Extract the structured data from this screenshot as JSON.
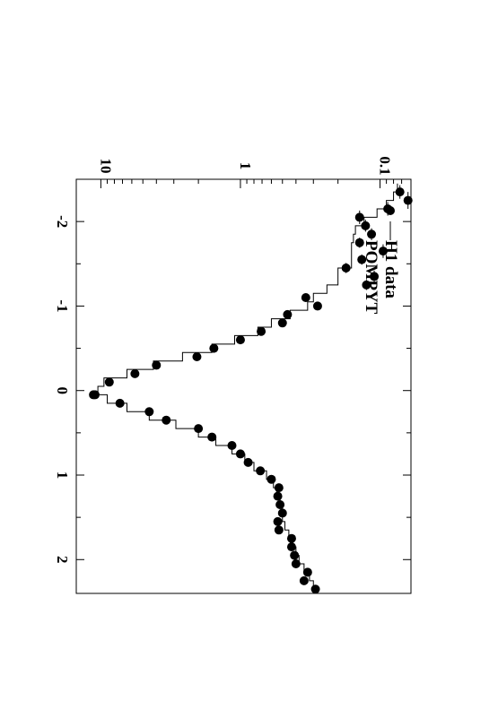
{
  "chart_data": {
    "type": "scatter",
    "rotated_page": true,
    "x_axis": {
      "range": [
        -2.5,
        2.4
      ],
      "ticks": [
        -2,
        -1,
        0,
        1,
        2
      ],
      "tick_labels": [
        "-2",
        "-1",
        "0",
        "1",
        "2"
      ]
    },
    "y_axis": {
      "scale": "log",
      "range": [
        0.06,
        15
      ],
      "ticks": [
        0.1,
        1,
        10
      ],
      "tick_labels": [
        "0.1",
        "1",
        "10"
      ]
    },
    "legend": {
      "placement": "top-left",
      "entries": [
        "H1 data",
        "POMPYT"
      ]
    },
    "series": [
      {
        "name": "H1 data",
        "style": "points-with-xerror",
        "points": [
          [
            -2.35,
            0.072,
            0.08
          ],
          [
            -2.25,
            0.063,
            0.1
          ],
          [
            -2.15,
            0.088,
            0.08
          ],
          [
            -2.05,
            0.14,
            0.08
          ],
          [
            -1.95,
            0.127,
            0.07
          ],
          [
            -1.85,
            0.115,
            0.07
          ],
          [
            -1.75,
            0.14,
            0.06
          ],
          [
            -1.65,
            0.095,
            0.08
          ],
          [
            -1.55,
            0.135,
            0.06
          ],
          [
            -1.45,
            0.175,
            0.06
          ],
          [
            -1.35,
            0.11,
            0.07
          ],
          [
            -1.25,
            0.125,
            0.06
          ],
          [
            -1.1,
            0.34,
            0.05
          ],
          [
            -1.0,
            0.28,
            0.05
          ],
          [
            -0.9,
            0.46,
            0.04
          ],
          [
            -0.8,
            0.5,
            0.04
          ],
          [
            -0.7,
            0.71,
            0.04
          ],
          [
            -0.6,
            1.0,
            0.04
          ],
          [
            -0.5,
            1.55,
            0.04
          ],
          [
            -0.4,
            2.05,
            0.04
          ],
          [
            -0.3,
            4.0,
            0.04
          ],
          [
            -0.2,
            5.7,
            0.04
          ],
          [
            -0.1,
            8.7,
            0.04
          ],
          [
            0.05,
            11.3,
            0.04
          ],
          [
            0.05,
            11.0,
            0.04
          ],
          [
            0.15,
            7.3,
            0.04
          ],
          [
            0.25,
            4.5,
            0.04
          ],
          [
            0.35,
            3.4,
            0.04
          ],
          [
            0.45,
            2.0,
            0.04
          ],
          [
            0.55,
            1.6,
            0.04
          ],
          [
            0.65,
            1.15,
            0.04
          ],
          [
            0.75,
            1.0,
            0.04
          ],
          [
            0.85,
            0.88,
            0.04
          ],
          [
            0.95,
            0.72,
            0.04
          ],
          [
            1.05,
            0.6,
            0.04
          ],
          [
            1.15,
            0.53,
            0.05
          ],
          [
            1.25,
            0.54,
            0.05
          ],
          [
            1.35,
            0.52,
            0.05
          ],
          [
            1.45,
            0.5,
            0.05
          ],
          [
            1.55,
            0.54,
            0.05
          ],
          [
            1.65,
            0.53,
            0.05
          ],
          [
            1.75,
            0.43,
            0.05
          ],
          [
            1.85,
            0.43,
            0.05
          ],
          [
            1.95,
            0.41,
            0.05
          ],
          [
            2.05,
            0.4,
            0.05
          ],
          [
            2.15,
            0.33,
            0.05
          ],
          [
            2.25,
            0.35,
            0.05
          ],
          [
            2.35,
            0.29,
            0.05
          ]
        ]
      },
      {
        "name": "POMPYT",
        "style": "step",
        "points": [
          [
            -2.4,
            0.075
          ],
          [
            -2.3,
            0.08
          ],
          [
            -2.2,
            0.09
          ],
          [
            -2.1,
            0.105
          ],
          [
            -2.0,
            0.13
          ],
          [
            -1.9,
            0.15
          ],
          [
            -1.8,
            0.155
          ],
          [
            -1.7,
            0.16
          ],
          [
            -1.6,
            0.16
          ],
          [
            -1.5,
            0.16
          ],
          [
            -1.4,
            0.2
          ],
          [
            -1.3,
            0.2
          ],
          [
            -1.2,
            0.24
          ],
          [
            -1.1,
            0.3
          ],
          [
            -1.0,
            0.33
          ],
          [
            -0.9,
            0.44
          ],
          [
            -0.8,
            0.6
          ],
          [
            -0.7,
            0.75
          ],
          [
            -0.6,
            1.1
          ],
          [
            -0.5,
            1.6
          ],
          [
            -0.4,
            2.6
          ],
          [
            -0.3,
            4.2
          ],
          [
            -0.2,
            6.5
          ],
          [
            -0.1,
            9.5
          ],
          [
            0.0,
            10.5
          ],
          [
            0.1,
            9.0
          ],
          [
            0.2,
            6.5
          ],
          [
            0.3,
            4.5
          ],
          [
            0.4,
            2.9
          ],
          [
            0.5,
            2.0
          ],
          [
            0.6,
            1.5
          ],
          [
            0.7,
            1.15
          ],
          [
            0.8,
            0.93
          ],
          [
            0.9,
            0.8
          ],
          [
            1.0,
            0.65
          ],
          [
            1.1,
            0.58
          ],
          [
            1.2,
            0.55
          ],
          [
            1.3,
            0.52
          ],
          [
            1.4,
            0.5
          ],
          [
            1.5,
            0.5
          ],
          [
            1.6,
            0.48
          ],
          [
            1.7,
            0.45
          ],
          [
            1.8,
            0.42
          ],
          [
            1.9,
            0.4
          ],
          [
            2.0,
            0.38
          ],
          [
            2.1,
            0.35
          ],
          [
            2.2,
            0.32
          ],
          [
            2.3,
            0.3
          ]
        ]
      }
    ]
  }
}
